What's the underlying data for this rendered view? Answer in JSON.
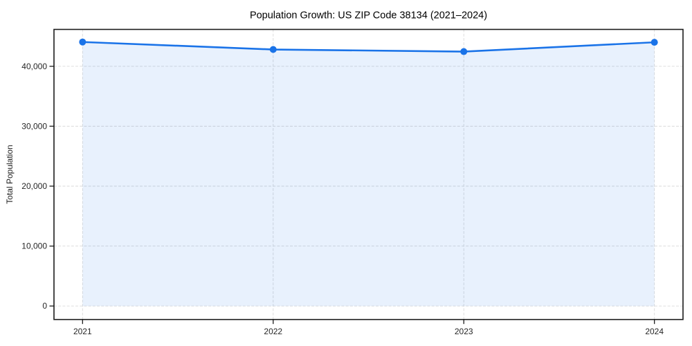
{
  "chart_data": {
    "type": "area",
    "title": "Population Growth: US ZIP Code 38134 (2021–2024)",
    "xlabel": "",
    "ylabel": "Total Population",
    "x": [
      2021,
      2022,
      2023,
      2024
    ],
    "series": [
      {
        "name": "Total Population",
        "values": [
          44050,
          42800,
          42450,
          44000
        ]
      }
    ],
    "xlim": [
      2020.85,
      2024.15
    ],
    "ylim": [
      -2250,
      46150
    ],
    "xticks": [
      2021,
      2022,
      2023,
      2024
    ],
    "xtick_labels": [
      "2021",
      "2022",
      "2023",
      "2024"
    ],
    "yticks": [
      0,
      10000,
      20000,
      30000,
      40000
    ],
    "ytick_labels": [
      "0",
      "10,000",
      "20,000",
      "30,000",
      "40,000"
    ],
    "grid": true,
    "grid_style": "dashed",
    "legend": false,
    "baseline_value": 0,
    "colors": {
      "line": "#1a73e8",
      "marker": "#1a73e8",
      "fill": "#1a73e8",
      "fill_opacity": 0.1,
      "grid": "#d9d9d9",
      "spine": "#1a1a1a",
      "tick_text": "#262626",
      "title_text": "#000000",
      "background": "#ffffff"
    }
  }
}
